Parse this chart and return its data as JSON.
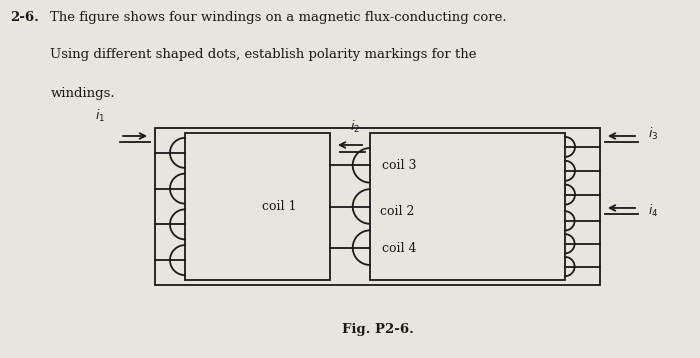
{
  "bg_color": "#e8e4de",
  "text_color": "#1a1a1a",
  "title_number": "2-6.",
  "title_text": "The figure shows four windings on a magnetic flux-conducting core.\nUsing different shaped dots, establish polarity markings for the\nwindings.",
  "fig_label": "Fig. P2-6.",
  "coil1_label": "coil 1",
  "coil2_label": "coil 2",
  "coil3_label": "coil 3",
  "coil4_label": "coil 4",
  "i1_label": "i",
  "i2_label": "i",
  "i3_label": "i",
  "i4_label": "i"
}
